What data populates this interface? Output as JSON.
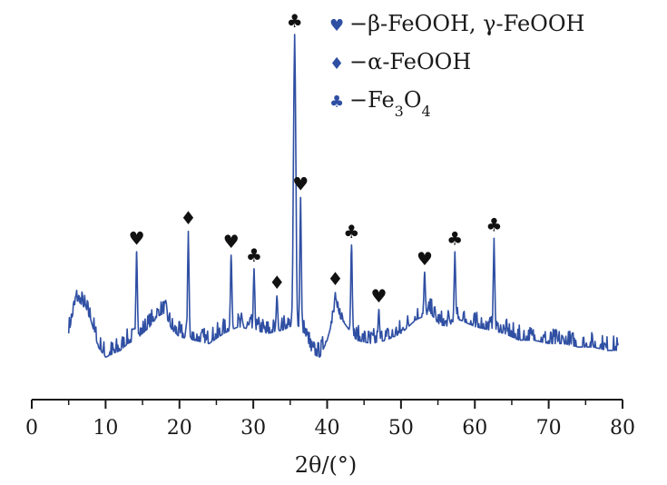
{
  "colors": {
    "trace": "#2f4fa3",
    "axis": "#1a1a1a",
    "legend_marker": "#2f4fa3",
    "peak_marker": "#111111"
  },
  "chart_data": {
    "type": "line",
    "xlabel": "2θ/(°)",
    "xlim": [
      0,
      80
    ],
    "xticks": [
      0,
      10,
      20,
      30,
      40,
      50,
      60,
      70,
      80
    ],
    "y_axis_visible": false,
    "ylim": [
      0,
      100
    ],
    "grid": false,
    "legend_position": "top-right",
    "legend": [
      {
        "symbol": "♥",
        "marker": "heart-marker",
        "label": "β-FeOOH, γ-FeOOH"
      },
      {
        "symbol": "♦",
        "marker": "diamond-marker",
        "label": "α-FeOOH"
      },
      {
        "symbol": "♣",
        "marker": "club-marker",
        "label": "Fe3O4"
      }
    ],
    "series": [
      {
        "values_note": "intensity, arbitrary units (y axis unlabeled)",
        "baseline": [
          [
            5,
            12
          ],
          [
            6,
            22
          ],
          [
            7,
            20
          ],
          [
            8,
            16
          ],
          [
            9,
            8
          ],
          [
            10,
            5
          ],
          [
            11,
            6
          ],
          [
            12,
            7
          ],
          [
            13,
            9
          ],
          [
            14,
            10
          ],
          [
            15,
            12
          ],
          [
            16,
            14
          ],
          [
            17,
            17
          ],
          [
            18,
            18
          ],
          [
            19,
            13
          ],
          [
            20,
            11
          ],
          [
            22,
            10
          ],
          [
            24,
            9
          ],
          [
            26,
            12
          ],
          [
            28,
            14
          ],
          [
            30,
            13
          ],
          [
            32,
            12
          ],
          [
            34,
            13
          ],
          [
            35,
            14
          ],
          [
            37,
            12
          ],
          [
            38,
            6
          ],
          [
            39,
            5
          ],
          [
            40,
            10
          ],
          [
            41,
            18
          ],
          [
            42,
            16
          ],
          [
            44,
            10
          ],
          [
            46,
            9
          ],
          [
            48,
            10
          ],
          [
            50,
            12
          ],
          [
            52,
            16
          ],
          [
            54,
            18
          ],
          [
            55,
            15
          ],
          [
            56,
            14
          ],
          [
            58,
            16
          ],
          [
            60,
            14
          ],
          [
            62,
            13
          ],
          [
            64,
            12
          ],
          [
            66,
            10
          ],
          [
            68,
            10
          ],
          [
            70,
            9
          ],
          [
            72,
            9
          ],
          [
            74,
            8
          ],
          [
            76,
            8
          ],
          [
            78,
            7
          ],
          [
            79.5,
            7
          ]
        ],
        "peaks": [
          {
            "x": 14.2,
            "y": 36
          },
          {
            "x": 21.2,
            "y": 42
          },
          {
            "x": 27.0,
            "y": 35
          },
          {
            "x": 30.1,
            "y": 31
          },
          {
            "x": 33.2,
            "y": 23
          },
          {
            "x": 35.6,
            "y": 100
          },
          {
            "x": 36.4,
            "y": 52
          },
          {
            "x": 41.1,
            "y": 24
          },
          {
            "x": 43.3,
            "y": 38
          },
          {
            "x": 47.0,
            "y": 19
          },
          {
            "x": 53.2,
            "y": 30
          },
          {
            "x": 57.3,
            "y": 36
          },
          {
            "x": 62.6,
            "y": 40
          }
        ]
      }
    ],
    "peak_labels": [
      {
        "x": 14.2,
        "y": 36,
        "symbol": "♥"
      },
      {
        "x": 21.2,
        "y": 42,
        "symbol": "♦"
      },
      {
        "x": 27.0,
        "y": 35,
        "symbol": "♥"
      },
      {
        "x": 30.1,
        "y": 31,
        "symbol": "♣"
      },
      {
        "x": 33.2,
        "y": 23,
        "symbol": "♦"
      },
      {
        "x": 35.6,
        "y": 100,
        "symbol": "♣"
      },
      {
        "x": 36.4,
        "y": 52,
        "symbol": "♥"
      },
      {
        "x": 41.1,
        "y": 24,
        "symbol": "♦"
      },
      {
        "x": 43.3,
        "y": 38,
        "symbol": "♣"
      },
      {
        "x": 47.0,
        "y": 19,
        "symbol": "♥"
      },
      {
        "x": 53.2,
        "y": 30,
        "symbol": "♥"
      },
      {
        "x": 57.3,
        "y": 36,
        "symbol": "♣"
      },
      {
        "x": 62.6,
        "y": 40,
        "symbol": "♣"
      }
    ]
  }
}
